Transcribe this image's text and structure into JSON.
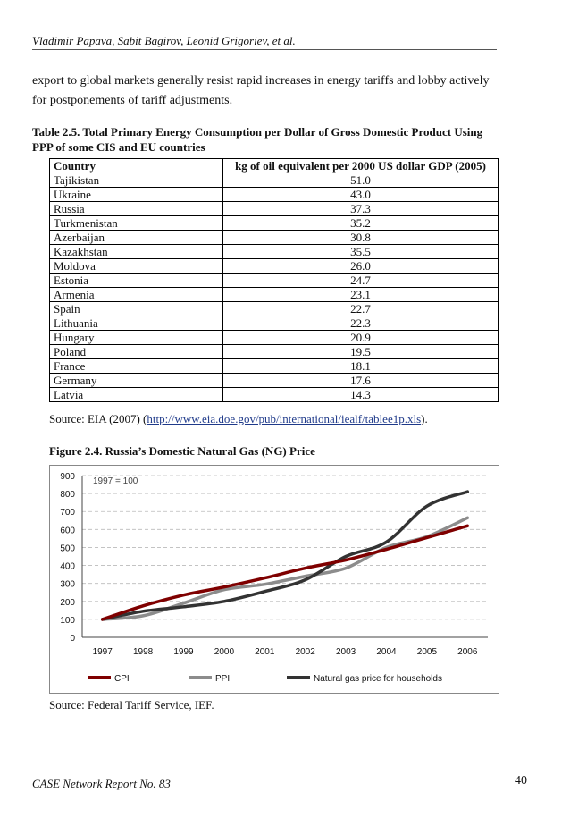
{
  "header": {
    "authors": "Vladimir Papava, Sabit Bagirov, Leonid Grigoriev, et al."
  },
  "paragraph": "export to global markets generally resist rapid increases in energy tariffs and lobby actively for postponements of tariff adjustments.",
  "table": {
    "caption": "Table 2.5. Total Primary Energy Consumption per Dollar of Gross Domestic Product Using PPP of some CIS and EU countries",
    "columns": [
      "Country",
      "kg of oil equivalent per 2000 US dollar GDP (2005)"
    ],
    "rows": [
      [
        "Tajikistan",
        "51.0"
      ],
      [
        "Ukraine",
        "43.0"
      ],
      [
        "Russia",
        "37.3"
      ],
      [
        "Turkmenistan",
        "35.2"
      ],
      [
        "Azerbaijan",
        "30.8"
      ],
      [
        "Kazakhstan",
        "35.5"
      ],
      [
        "Moldova",
        "26.0"
      ],
      [
        "Estonia",
        "24.7"
      ],
      [
        "Armenia",
        "23.1"
      ],
      [
        "Spain",
        "22.7"
      ],
      [
        "Lithuania",
        "22.3"
      ],
      [
        "Hungary",
        "20.9"
      ],
      [
        "Poland",
        "19.5"
      ],
      [
        "France",
        "18.1"
      ],
      [
        "Germany",
        "17.6"
      ],
      [
        "Latvia",
        "14.3"
      ]
    ],
    "source_prefix": "Source: EIA (2007) (",
    "source_link": "http://www.eia.doe.gov/pub/international/iealf/tablee1p.xls",
    "source_suffix": ")."
  },
  "figure": {
    "caption": "Figure 2.4. Russia’s Domestic Natural Gas (NG) Price",
    "source": "Source: Federal Tariff Service, IEF."
  },
  "chart_data": {
    "type": "line",
    "title": "",
    "annotation": "1997 = 100",
    "xlabel": "",
    "ylabel": "",
    "x": [
      "1997",
      "1998",
      "1999",
      "2000",
      "2001",
      "2002",
      "2003",
      "2004",
      "2005",
      "2006"
    ],
    "ylim": [
      0,
      900
    ],
    "yticks": [
      0,
      100,
      200,
      300,
      400,
      500,
      600,
      700,
      800,
      900
    ],
    "grid": true,
    "legend_position": "bottom",
    "series": [
      {
        "name": "CPI",
        "color": "#7f0000",
        "values": [
          100,
          175,
          235,
          280,
          330,
          385,
          430,
          490,
          555,
          620
        ]
      },
      {
        "name": "PPI",
        "color": "#8c8c8c",
        "values": [
          100,
          120,
          190,
          265,
          295,
          340,
          385,
          500,
          560,
          665
        ]
      },
      {
        "name": "Natural gas price for households",
        "color": "#333333",
        "values": [
          100,
          145,
          170,
          200,
          255,
          320,
          450,
          530,
          730,
          810
        ]
      }
    ]
  },
  "footer": {
    "report": "CASE Network Report No. 83",
    "page": "40"
  }
}
